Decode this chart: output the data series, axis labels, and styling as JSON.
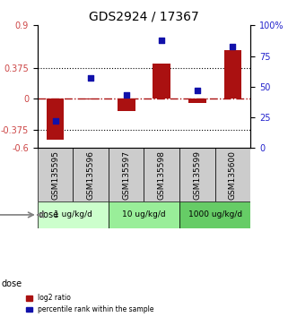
{
  "title": "GDS2924 / 17367",
  "samples": [
    "GSM135595",
    "GSM135596",
    "GSM135597",
    "GSM135598",
    "GSM135599",
    "GSM135600"
  ],
  "log2_ratio": [
    -0.5,
    -0.01,
    -0.15,
    0.43,
    -0.05,
    0.6
  ],
  "percentile_rank": [
    22,
    57,
    43,
    88,
    47,
    83
  ],
  "bar_color": "#aa1111",
  "dot_color": "#1111aa",
  "ylim_left": [
    -0.6,
    0.9
  ],
  "ylim_right": [
    0,
    100
  ],
  "yticks_left": [
    -0.6,
    -0.375,
    0,
    0.375,
    0.9
  ],
  "ytick_labels_left": [
    "-0.6",
    "-0.375",
    "0",
    "0.375",
    "0.9"
  ],
  "yticks_right": [
    0,
    25,
    50,
    75,
    100
  ],
  "ytick_labels_right": [
    "0",
    "25",
    "50",
    "75",
    "100%"
  ],
  "hlines": [
    0.375,
    -0.375
  ],
  "doses": [
    {
      "label": "1 ug/kg/d",
      "cols": [
        0,
        1
      ],
      "color": "#ccffcc"
    },
    {
      "label": "10 ug/kg/d",
      "cols": [
        2,
        3
      ],
      "color": "#99ee99"
    },
    {
      "label": "1000 ug/kg/d",
      "cols": [
        4,
        5
      ],
      "color": "#66cc66"
    }
  ],
  "legend_red": "log2 ratio",
  "legend_blue": "percentile rank within the sample",
  "bar_width": 0.5,
  "ylabel_color_left": "#cc4444",
  "ylabel_color_right": "#2222cc"
}
